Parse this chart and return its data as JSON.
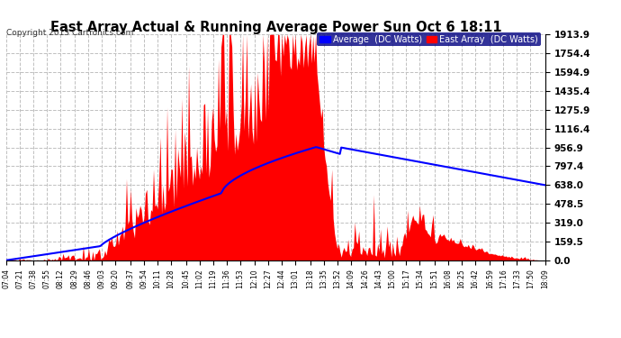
{
  "title": "East Array Actual & Running Average Power Sun Oct 6 18:11",
  "copyright": "Copyright 2013 Cartronics.com",
  "ylabel_right": [
    "0.0",
    "159.5",
    "319.0",
    "478.5",
    "638.0",
    "797.4",
    "956.9",
    "1116.4",
    "1275.9",
    "1435.4",
    "1594.9",
    "1754.4",
    "1913.9"
  ],
  "ymax": 1913.9,
  "legend_avg": "Average  (DC Watts)",
  "legend_east": "East Array  (DC Watts)",
  "bg_color": "#ffffff",
  "plot_bg_color": "#ffffff",
  "fill_color": "#ff0000",
  "avg_line_color": "#0000ff",
  "title_color": "#000000",
  "grid_color": "#c0c0c0",
  "x_labels": [
    "07:04",
    "07:21",
    "07:38",
    "07:55",
    "08:12",
    "08:29",
    "08:46",
    "09:03",
    "09:20",
    "09:37",
    "09:54",
    "10:11",
    "10:28",
    "10:45",
    "11:02",
    "11:19",
    "11:36",
    "11:53",
    "12:10",
    "12:27",
    "12:44",
    "13:01",
    "13:18",
    "13:35",
    "13:52",
    "14:09",
    "14:26",
    "14:43",
    "15:00",
    "15:17",
    "15:34",
    "15:51",
    "16:08",
    "16:25",
    "16:42",
    "16:59",
    "17:16",
    "17:33",
    "17:50",
    "18:09"
  ]
}
